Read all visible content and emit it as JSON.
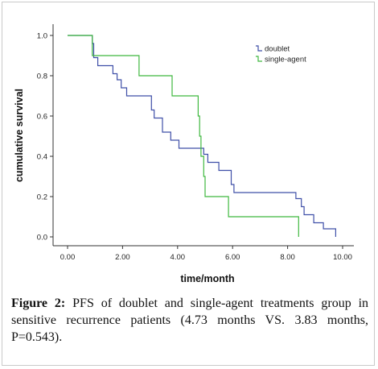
{
  "chart_data": {
    "type": "line",
    "step": true,
    "xlabel": "time/month",
    "ylabel": "cumulative survival",
    "xlim": [
      0,
      10
    ],
    "ylim": [
      0,
      1
    ],
    "xticks": [
      "0.00",
      "2.00",
      "4.00",
      "6.00",
      "8.00",
      "10.00"
    ],
    "yticks": [
      "0.0",
      "0.2",
      "0.4",
      "0.6",
      "0.8",
      "1.0"
    ],
    "grid": false,
    "legend_position": "top-right",
    "series": [
      {
        "name": "doublet",
        "color": "#3f4fa8",
        "x": [
          0,
          0.85,
          0.9,
          0.95,
          1.1,
          1.5,
          1.65,
          1.8,
          1.95,
          2.15,
          2.3,
          3.05,
          3.15,
          3.3,
          3.45,
          3.75,
          3.85,
          4.05,
          4.7,
          4.95,
          5.1,
          5.3,
          5.5,
          5.75,
          5.95,
          6.05,
          8.2,
          8.3,
          8.5,
          8.6,
          8.75,
          8.95,
          9.3,
          9.75,
          9.75
        ],
        "y": [
          1.0,
          1.0,
          0.96,
          0.89,
          0.85,
          0.85,
          0.81,
          0.78,
          0.74,
          0.7,
          0.7,
          0.63,
          0.59,
          0.59,
          0.52,
          0.48,
          0.48,
          0.44,
          0.44,
          0.41,
          0.37,
          0.37,
          0.33,
          0.33,
          0.26,
          0.22,
          0.22,
          0.19,
          0.15,
          0.11,
          0.11,
          0.07,
          0.04,
          0.04,
          0.0
        ]
      },
      {
        "name": "single-agent",
        "color": "#3fb83f",
        "x": [
          0,
          0.85,
          0.9,
          2.55,
          2.6,
          3.75,
          3.8,
          4.7,
          4.75,
          4.8,
          4.85,
          4.95,
          5.0,
          5.8,
          5.85,
          8.35,
          8.4
        ],
        "y": [
          1.0,
          1.0,
          0.9,
          0.9,
          0.8,
          0.8,
          0.7,
          0.7,
          0.6,
          0.5,
          0.4,
          0.3,
          0.2,
          0.2,
          0.1,
          0.1,
          0.0
        ]
      }
    ]
  },
  "caption": {
    "figure_label": "Figure 2:",
    "text": "PFS of doublet and single-agent treatments group in sensitive recurrence patients (4.73 months VS. 3.83 months, P=0.543)."
  }
}
